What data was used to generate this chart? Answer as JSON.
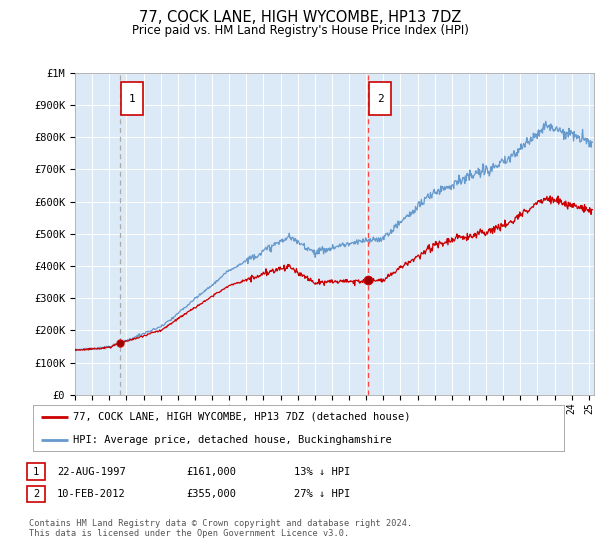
{
  "title": "77, COCK LANE, HIGH WYCOMBE, HP13 7DZ",
  "subtitle": "Price paid vs. HM Land Registry's House Price Index (HPI)",
  "plot_bg_color": "#dce9f7",
  "ylim": [
    0,
    1000000
  ],
  "yticks": [
    0,
    100000,
    200000,
    300000,
    400000,
    500000,
    600000,
    700000,
    800000,
    900000,
    1000000
  ],
  "ytick_labels": [
    "£0",
    "£100K",
    "£200K",
    "£300K",
    "£400K",
    "£500K",
    "£600K",
    "£700K",
    "£800K",
    "£900K",
    "£1M"
  ],
  "legend_line1": "77, COCK LANE, HIGH WYCOMBE, HP13 7DZ (detached house)",
  "legend_line2": "HPI: Average price, detached house, Buckinghamshire",
  "annotation1_date": "22-AUG-1997",
  "annotation1_price": "£161,000",
  "annotation1_hpi": "13% ↓ HPI",
  "annotation2_date": "10-FEB-2012",
  "annotation2_price": "£355,000",
  "annotation2_hpi": "27% ↓ HPI",
  "footnote": "Contains HM Land Registry data © Crown copyright and database right 2024.\nThis data is licensed under the Open Government Licence v3.0.",
  "hpi_color": "#6699cc",
  "price_color": "#cc0000",
  "vline1_color": "#aaaaaa",
  "vline2_color": "#ff4444",
  "sale1_year": 1997.62,
  "sale1_price": 161000,
  "sale2_year": 2012.1,
  "sale2_price": 355000,
  "xlim_start": 1995,
  "xlim_end": 2025.3
}
